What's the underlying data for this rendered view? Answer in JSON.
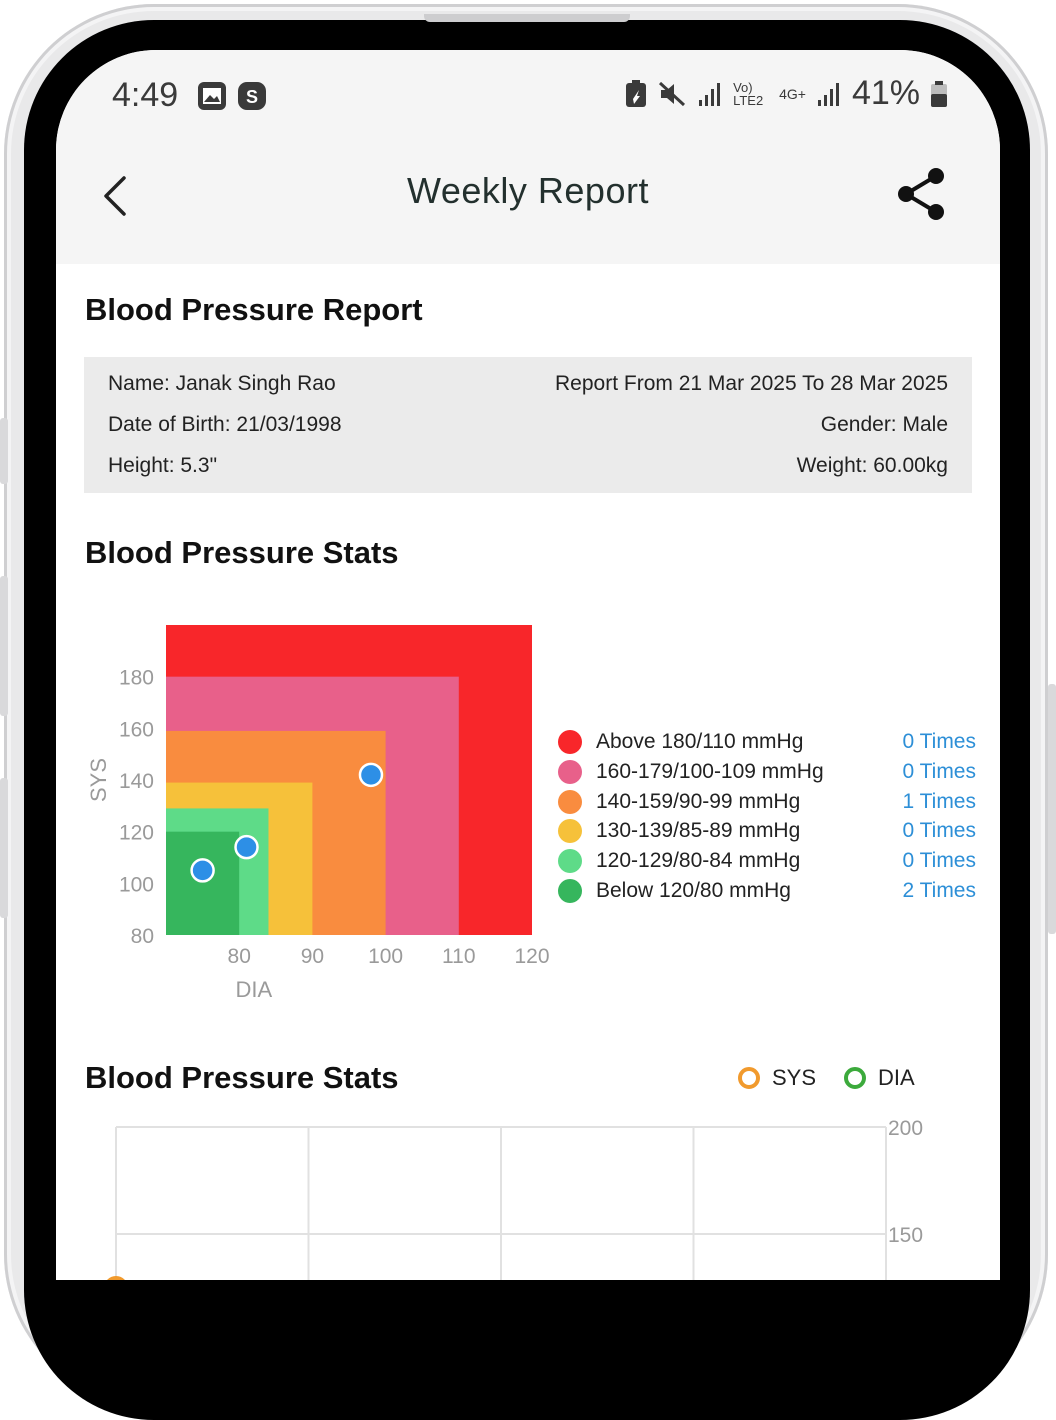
{
  "status_bar": {
    "time": "4:49",
    "network_text": "Vo) LTE2",
    "network_gen": "4G+",
    "battery": "41%"
  },
  "app_bar": {
    "title": "Weekly Report"
  },
  "report": {
    "heading": "Blood Pressure Report",
    "name": "Name: Janak Singh Rao",
    "range": "Report From 21 Mar 2025 To 28 Mar 2025",
    "dob": "Date of Birth: 21/03/1998",
    "gender": "Gender: Male",
    "height": "Height: 5.3\"",
    "weight": "Weight: 60.00kg"
  },
  "stats1": {
    "heading": "Blood Pressure Stats"
  },
  "stats2": {
    "heading": "Blood Pressure Stats",
    "legend_sys": "SYS",
    "legend_dia": "DIA"
  },
  "legend": [
    {
      "label": "Above 180/110 mmHg",
      "count": "0 Times",
      "color": "#f8262a"
    },
    {
      "label": "160-179/100-109 mmHg",
      "count": "0 Times",
      "color": "#e8608a"
    },
    {
      "label": "140-159/90-99 mmHg",
      "count": "1 Times",
      "color": "#f98c3f"
    },
    {
      "label": "130-139/85-89 mmHg",
      "count": "0 Times",
      "color": "#f6c13a"
    },
    {
      "label": "120-129/80-84 mmHg",
      "count": "0 Times",
      "color": "#5edb88"
    },
    {
      "label": "Below 120/80 mmHg",
      "count": "2 Times",
      "color": "#36b65d"
    }
  ],
  "chart_data": [
    {
      "type": "scatter",
      "xlabel": "DIA",
      "ylabel": "SYS",
      "xlim": [
        70,
        120
      ],
      "ylim": [
        80,
        200
      ],
      "x_ticks": [
        "80",
        "90",
        "100",
        "110",
        "120"
      ],
      "y_ticks": [
        "80",
        "100",
        "120",
        "140",
        "160",
        "180"
      ],
      "zones": [
        {
          "dia_max": 120,
          "sys_max": 200,
          "color": "#f8262a"
        },
        {
          "dia_max": 110,
          "sys_max": 180,
          "color": "#e8608a"
        },
        {
          "dia_max": 100,
          "sys_max": 159,
          "color": "#f98c3f"
        },
        {
          "dia_max": 90,
          "sys_max": 139,
          "color": "#f6c13a"
        },
        {
          "dia_max": 84,
          "sys_max": 129,
          "color": "#5edb88"
        },
        {
          "dia_max": 80,
          "sys_max": 120,
          "color": "#36b65d"
        }
      ],
      "points": [
        {
          "dia": 98,
          "sys": 142
        },
        {
          "dia": 81,
          "sys": 114
        },
        {
          "dia": 75,
          "sys": 105
        }
      ],
      "point_color": "#2d8fe6"
    },
    {
      "type": "line",
      "series": [
        {
          "name": "SYS",
          "color": "#f19a2d"
        },
        {
          "name": "DIA",
          "color": "#3caa3c"
        }
      ],
      "y_ticks": [
        "200",
        "150"
      ],
      "ylim": [
        100,
        200
      ]
    }
  ]
}
